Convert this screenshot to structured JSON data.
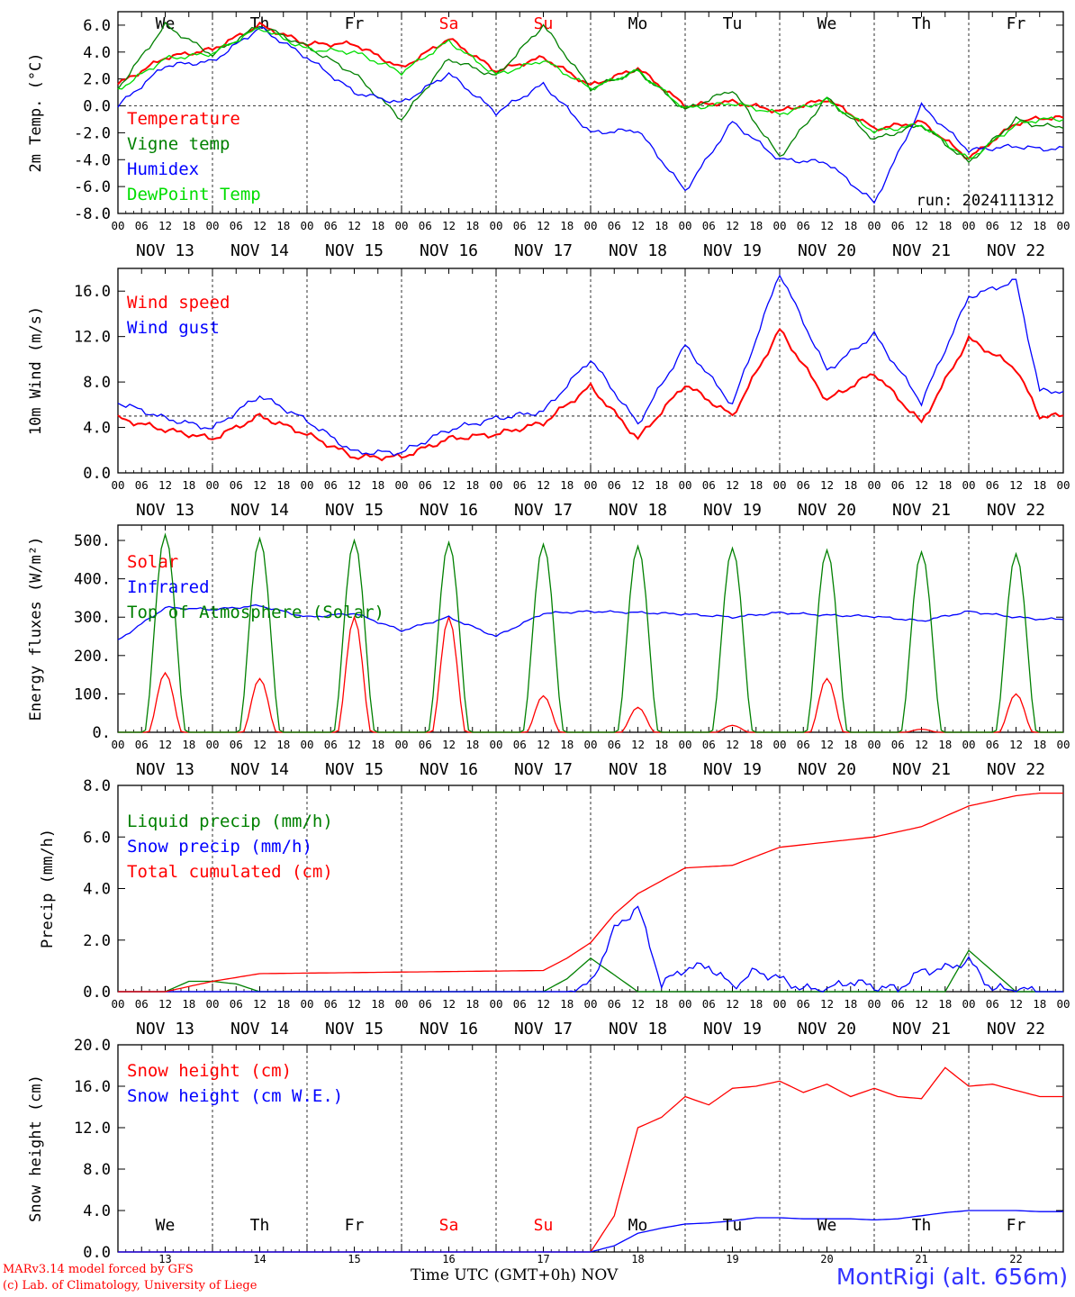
{
  "chart_data": [
    {
      "type": "line",
      "ylabel": "2m Temp. (°C)",
      "ylim": [
        -8,
        7
      ],
      "yticks": [
        "-8.0",
        "-6.0",
        "-4.0",
        "-2.0",
        "0.0",
        "2.0",
        "4.0",
        "6.0"
      ],
      "reference_line": 0,
      "weekdays": [
        {
          "label": "We",
          "color": "#000000"
        },
        {
          "label": "Th",
          "color": "#000000"
        },
        {
          "label": "Fr",
          "color": "#000000"
        },
        {
          "label": "Sa",
          "color": "#ff0000"
        },
        {
          "label": "Su",
          "color": "#ff0000"
        },
        {
          "label": "Mo",
          "color": "#000000"
        },
        {
          "label": "Tu",
          "color": "#000000"
        },
        {
          "label": "We",
          "color": "#000000"
        },
        {
          "label": "Th",
          "color": "#000000"
        },
        {
          "label": "Fr",
          "color": "#000000"
        }
      ],
      "annotation": "run: 2024111312",
      "series": [
        {
          "name": "Temperature",
          "color": "#ff0000",
          "hours": [
            0,
            12,
            24,
            36,
            48,
            60,
            72,
            84,
            96,
            108,
            120,
            132,
            144,
            156,
            168,
            180,
            192,
            204,
            216,
            228,
            234
          ],
          "values": [
            1.6,
            3.6,
            4.2,
            6.0,
            4.6,
            4.6,
            2.8,
            5.0,
            2.6,
            3.6,
            1.5,
            2.8,
            0.0,
            0.3,
            -0.4,
            0.5,
            -1.7,
            -1.2,
            -3.9,
            -1.3,
            -0.9
          ]
        },
        {
          "name": "Vigne temp",
          "color": "#008000",
          "hours": [
            0,
            12,
            24,
            36,
            48,
            60,
            72,
            84,
            96,
            108,
            120,
            132,
            144,
            156,
            168,
            180,
            192,
            204,
            216,
            228,
            234
          ],
          "values": [
            1.3,
            6.0,
            3.8,
            6.0,
            4.4,
            2.4,
            -1.0,
            3.5,
            2.2,
            6.0,
            1.3,
            2.6,
            -0.3,
            1.2,
            -3.8,
            0.6,
            -2.5,
            -1.4,
            -4.2,
            -1.0,
            -1.5
          ]
        },
        {
          "name": "Humidex",
          "color": "#0000ff",
          "hours": [
            0,
            12,
            24,
            36,
            48,
            60,
            72,
            84,
            96,
            108,
            120,
            132,
            144,
            156,
            168,
            180,
            192,
            204,
            216,
            228,
            234
          ],
          "values": [
            0.0,
            3.0,
            3.3,
            5.8,
            3.6,
            1.0,
            0.2,
            2.4,
            -0.5,
            1.6,
            -2.0,
            -1.8,
            -6.3,
            -1.2,
            -4.0,
            -4.2,
            -7.2,
            0.0,
            -3.3,
            -3.0,
            -3.2
          ]
        },
        {
          "name": "DewPoint Temp",
          "color": "#00dd00",
          "hours": [
            0,
            12,
            24,
            36,
            48,
            60,
            72,
            84,
            96,
            108,
            120,
            132,
            144,
            156,
            168,
            180,
            192,
            204,
            216,
            228,
            234
          ],
          "values": [
            1.2,
            3.5,
            3.9,
            5.8,
            4.2,
            4.0,
            2.5,
            4.8,
            2.3,
            3.4,
            1.3,
            2.6,
            -0.2,
            0.2,
            -0.6,
            0.4,
            -1.9,
            -1.4,
            -4.0,
            -1.4,
            -1.0
          ]
        }
      ]
    },
    {
      "type": "line",
      "ylabel": "10m Wind (m/s)",
      "ylim": [
        0,
        18
      ],
      "yticks": [
        "0.0",
        "4.0",
        "8.0",
        "12.0",
        "16.0"
      ],
      "reference_line": 5,
      "series": [
        {
          "name": "Wind speed",
          "color": "#ff0000",
          "hours": [
            0,
            12,
            24,
            36,
            48,
            60,
            72,
            84,
            96,
            108,
            120,
            132,
            144,
            156,
            168,
            180,
            192,
            204,
            216,
            228,
            234
          ],
          "values": [
            4.8,
            3.8,
            3.0,
            5.0,
            3.4,
            1.4,
            1.4,
            3.0,
            3.4,
            4.4,
            7.6,
            3.0,
            7.8,
            5.0,
            12.6,
            6.4,
            8.8,
            4.4,
            11.8,
            9.2,
            5.0
          ]
        },
        {
          "name": "Wind gust",
          "color": "#0000ff",
          "hours": [
            0,
            12,
            24,
            36,
            48,
            60,
            72,
            84,
            96,
            108,
            120,
            132,
            144,
            156,
            168,
            180,
            192,
            204,
            216,
            228,
            234
          ],
          "values": [
            6.2,
            4.8,
            3.9,
            6.8,
            4.6,
            1.8,
            1.8,
            3.8,
            4.8,
            5.4,
            10.0,
            4.3,
            11.2,
            6.0,
            17.6,
            9.0,
            12.2,
            6.2,
            15.5,
            16.9,
            7.2
          ]
        }
      ]
    },
    {
      "type": "line",
      "ylabel": "Energy fluxes (W/m²)",
      "ylim": [
        0,
        540
      ],
      "yticks": [
        "0.",
        "100.",
        "200.",
        "300.",
        "400.",
        "500."
      ],
      "series": [
        {
          "name": "Solar",
          "color": "#ff0000",
          "daily_peak_hour": 12,
          "daily_peaks": [
            155,
            140,
            300,
            300,
            95,
            65,
            18,
            140,
            8,
            100
          ]
        },
        {
          "name": "Infrared",
          "color": "#0000ff",
          "hours": [
            0,
            12,
            24,
            36,
            48,
            60,
            72,
            84,
            96,
            108,
            120,
            132,
            144,
            156,
            168,
            180,
            192,
            204,
            216,
            228,
            234
          ],
          "values": [
            240,
            325,
            320,
            330,
            300,
            310,
            265,
            300,
            250,
            310,
            315,
            312,
            308,
            300,
            312,
            305,
            302,
            290,
            315,
            300,
            295
          ]
        },
        {
          "name": "Top of Atmosphere (Solar)",
          "color": "#008000",
          "daily_peak_hour": 12,
          "daily_peaks": [
            515,
            505,
            500,
            495,
            490,
            485,
            480,
            475,
            470,
            465
          ]
        }
      ]
    },
    {
      "type": "line",
      "ylabel": "Precip (mm/h)",
      "ylim": [
        0,
        8
      ],
      "yticks": [
        "0.0",
        "2.0",
        "4.0",
        "6.0",
        "8.0"
      ],
      "series": [
        {
          "name": "Liquid precip (mm/h)",
          "color": "#008000",
          "hours": [
            0,
            12,
            18,
            24,
            30,
            36,
            48,
            96,
            108,
            114,
            120,
            132,
            144,
            156,
            168,
            180,
            192,
            204,
            210,
            216,
            228,
            234
          ],
          "values": [
            0,
            0,
            0.4,
            0.4,
            0.3,
            0,
            0,
            0,
            0,
            0.5,
            1.3,
            0,
            0,
            0,
            0,
            0,
            0,
            0,
            0,
            1.6,
            0,
            0
          ]
        },
        {
          "name": "Snow precip (mm/h)",
          "color": "#0000ff",
          "hours": [
            0,
            108,
            114,
            120,
            126,
            132,
            138,
            144,
            150,
            156,
            162,
            168,
            174,
            180,
            186,
            192,
            198,
            204,
            210,
            216,
            222,
            228,
            234
          ],
          "values": [
            0,
            0,
            0,
            0.3,
            2.4,
            3.3,
            0.3,
            0.9,
            1.0,
            0.2,
            0.8,
            0.5,
            0.1,
            0.1,
            0.4,
            0.2,
            0.1,
            0.8,
            0.9,
            1.2,
            0.1,
            0.1,
            0
          ]
        },
        {
          "name": "Total cumulated (cm)",
          "color": "#ff0000",
          "hours": [
            0,
            12,
            24,
            36,
            48,
            60,
            72,
            84,
            96,
            108,
            114,
            120,
            126,
            132,
            138,
            144,
            156,
            168,
            180,
            192,
            204,
            216,
            228,
            234
          ],
          "values": [
            0,
            0,
            0.4,
            0.7,
            0.72,
            0.74,
            0.76,
            0.78,
            0.8,
            0.82,
            1.3,
            1.9,
            3.0,
            3.8,
            4.3,
            4.8,
            4.9,
            5.6,
            5.8,
            6.0,
            6.4,
            7.2,
            7.6,
            7.7
          ]
        }
      ]
    },
    {
      "type": "line",
      "ylabel": "Snow height (cm)",
      "ylim": [
        0,
        20
      ],
      "yticks": [
        "0.0",
        "4.0",
        "8.0",
        "12.0",
        "16.0",
        "20.0"
      ],
      "series": [
        {
          "name": "Snow height (cm)",
          "color": "#ff0000",
          "hours": [
            0,
            108,
            114,
            120,
            126,
            132,
            138,
            144,
            150,
            156,
            162,
            168,
            174,
            180,
            186,
            192,
            198,
            204,
            210,
            216,
            222,
            228,
            234
          ],
          "values": [
            0,
            0,
            0,
            0,
            3.5,
            12,
            13.0,
            15,
            14.2,
            15.8,
            16.0,
            16.5,
            15.4,
            16.2,
            15.0,
            15.8,
            15.0,
            14.8,
            17.8,
            16.0,
            16.2,
            15.6,
            15.0
          ]
        },
        {
          "name": "Snow height (cm W.E.)",
          "color": "#0000ff",
          "hours": [
            0,
            108,
            114,
            120,
            126,
            132,
            138,
            144,
            150,
            156,
            162,
            168,
            174,
            180,
            186,
            192,
            198,
            204,
            210,
            216,
            222,
            228,
            234
          ],
          "values": [
            0,
            0,
            0,
            0,
            0.6,
            1.8,
            2.3,
            2.7,
            2.8,
            3.0,
            3.3,
            3.3,
            3.2,
            3.2,
            3.2,
            3.1,
            3.2,
            3.5,
            3.8,
            4.0,
            4.0,
            4.0,
            3.9
          ]
        }
      ],
      "bottom_days": [
        "13",
        "14",
        "15",
        "16",
        "17",
        "18",
        "19",
        "20",
        "21",
        "22"
      ],
      "bottom_weekdays": [
        {
          "label": "We",
          "color": "#000000"
        },
        {
          "label": "Th",
          "color": "#000000"
        },
        {
          "label": "Fr",
          "color": "#000000"
        },
        {
          "label": "Sa",
          "color": "#ff0000"
        },
        {
          "label": "Su",
          "color": "#ff0000"
        },
        {
          "label": "Mo",
          "color": "#000000"
        },
        {
          "label": "Tu",
          "color": "#000000"
        },
        {
          "label": "We",
          "color": "#000000"
        },
        {
          "label": "Th",
          "color": "#000000"
        },
        {
          "label": "Fr",
          "color": "#000000"
        }
      ]
    }
  ],
  "x_axis": {
    "hour_ticks": [
      "00",
      "06",
      "12",
      "18"
    ],
    "last_tick": "00",
    "date_labels": [
      "NOV 13",
      "NOV 14",
      "NOV 15",
      "NOV 16",
      "NOV 17",
      "NOV 18",
      "NOV 19",
      "NOV 20",
      "NOV 21",
      "NOV 22"
    ],
    "hours_total": 240
  },
  "footer": {
    "model_line": "MARv3.14 model forced by GFS",
    "copyright_line": "(c) Lab. of Climatology, University of Liege",
    "xtitle": "Time UTC (GMT+0h)",
    "month": "NOV",
    "station": "MontRigi (alt. 656m)"
  }
}
